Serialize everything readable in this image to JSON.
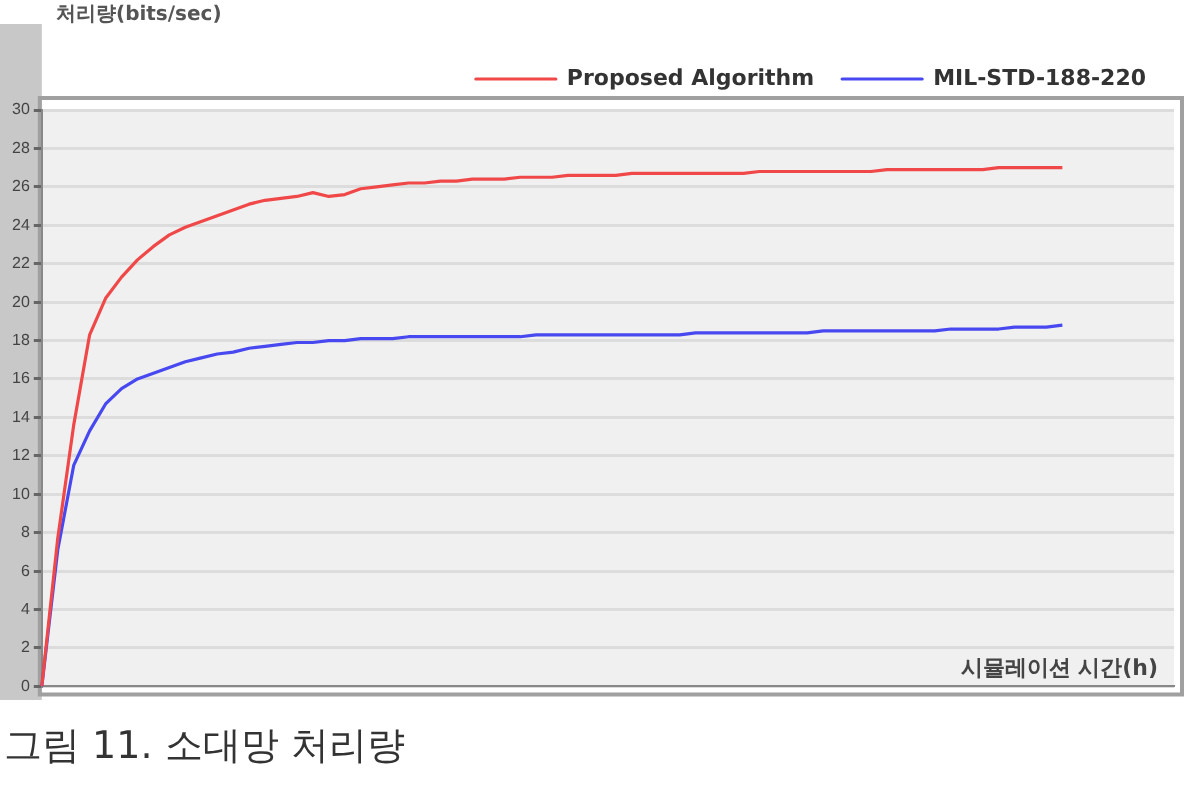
{
  "chart_data": {
    "type": "line",
    "ylabel": "처리량(bits/sec)",
    "xlabel": "시뮬레이션 시간(h)",
    "annotations": [
      "그림 11. 소대망 처리량"
    ],
    "categories": [
      null,
      null,
      null,
      null,
      null,
      null,
      null,
      null,
      null,
      null,
      null,
      null,
      null,
      null,
      null,
      null,
      null,
      null,
      null,
      null,
      null,
      null,
      null,
      null,
      null,
      null,
      null,
      null,
      null,
      null,
      null,
      null,
      null,
      null,
      null,
      null,
      null,
      null,
      null,
      null,
      null,
      null,
      null,
      null,
      null,
      null,
      null,
      null,
      null,
      null,
      null,
      null,
      null,
      null,
      null,
      null,
      null,
      null,
      null,
      null,
      null,
      null,
      null,
      null,
      null,
      null,
      null,
      null,
      null,
      null,
      null,
      null
    ],
    "series": [
      {
        "name": "Proposed Algorithm",
        "color": "#f04848",
        "values": [
          0,
          7.7,
          13.6,
          18.3,
          20.2,
          21.3,
          22.2,
          22.9,
          23.5,
          23.9,
          24.2,
          24.5,
          24.8,
          25.1,
          25.3,
          25.4,
          25.5,
          25.7,
          25.5,
          25.6,
          25.9,
          26.0,
          26.1,
          26.2,
          26.2,
          26.3,
          26.3,
          26.4,
          26.4,
          26.4,
          26.5,
          26.5,
          26.5,
          26.6,
          26.6,
          26.6,
          26.6,
          26.7,
          26.7,
          26.7,
          26.7,
          26.7,
          26.7,
          26.7,
          26.7,
          26.8,
          26.8,
          26.8,
          26.8,
          26.8,
          26.8,
          26.8,
          26.8,
          26.9,
          26.9,
          26.9,
          26.9,
          26.9,
          26.9,
          26.9,
          27.0,
          27.0,
          27.0,
          27.0,
          27.0,
          null,
          null,
          null,
          null,
          null,
          null,
          null
        ]
      },
      {
        "name": "MIL-STD-188-220",
        "color": "#4848f0",
        "values": [
          0,
          7.1,
          11.5,
          13.3,
          14.7,
          15.5,
          16.0,
          16.3,
          16.6,
          16.9,
          17.1,
          17.3,
          17.4,
          17.6,
          17.7,
          17.8,
          17.9,
          17.9,
          18.0,
          18.0,
          18.1,
          18.1,
          18.1,
          18.2,
          18.2,
          18.2,
          18.2,
          18.2,
          18.2,
          18.2,
          18.2,
          18.3,
          18.3,
          18.3,
          18.3,
          18.3,
          18.3,
          18.3,
          18.3,
          18.3,
          18.3,
          18.4,
          18.4,
          18.4,
          18.4,
          18.4,
          18.4,
          18.4,
          18.4,
          18.5,
          18.5,
          18.5,
          18.5,
          18.5,
          18.5,
          18.5,
          18.5,
          18.6,
          18.6,
          18.6,
          18.6,
          18.7,
          18.7,
          18.7,
          18.8,
          null,
          null,
          null,
          null,
          null,
          null,
          null
        ]
      }
    ],
    "ylim": [
      0,
      30
    ],
    "yticks": [
      0,
      2,
      4,
      6,
      8,
      10,
      12,
      14,
      16,
      18,
      20,
      22,
      24,
      26,
      28,
      30
    ],
    "grid": "y",
    "legend": "top right",
    "tick_labels": "y",
    "marker": "none",
    "line_style": "solid"
  }
}
